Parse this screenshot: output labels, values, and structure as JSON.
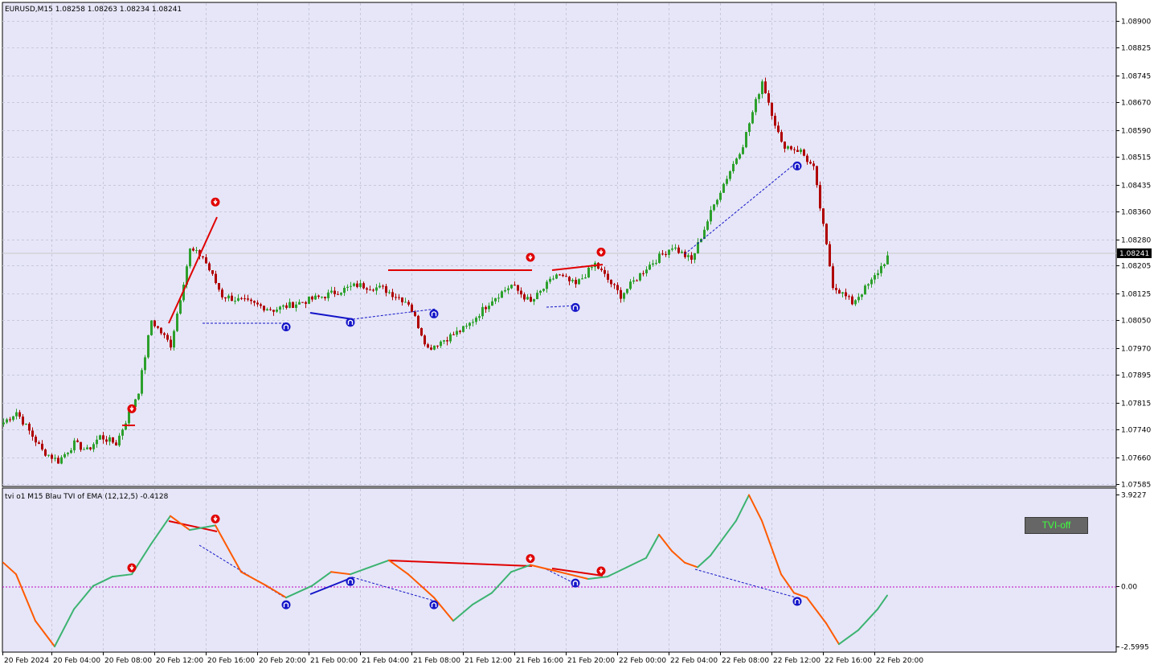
{
  "main_panel": {
    "info": "EURUSD,M15  1.08258 1.08263 1.08234 1.08241",
    "price_ticks": [
      "1.08900",
      "1.08825",
      "1.08745",
      "1.08670",
      "1.08590",
      "1.08515",
      "1.08435",
      "1.08360",
      "1.08280",
      "1.08205",
      "1.08125",
      "1.08050",
      "1.07970",
      "1.07895",
      "1.07815",
      "1.07740",
      "1.07660",
      "1.07585"
    ],
    "current_price": "1.08241"
  },
  "indicator_panel": {
    "info": "tvi o1 M15 Blau TVI of EMA (12,12,5) -0.4128",
    "ticks": [
      "3.9227",
      "0.00",
      "-2.5995"
    ]
  },
  "time_labels": [
    "20 Feb 2024",
    "20 Feb 04:00",
    "20 Feb 08:00",
    "20 Feb 12:00",
    "20 Feb 16:00",
    "20 Feb 20:00",
    "21 Feb 00:00",
    "21 Feb 04:00",
    "21 Feb 08:00",
    "21 Feb 12:00",
    "21 Feb 16:00",
    "21 Feb 20:00",
    "22 Feb 00:00",
    "22 Feb 04:00",
    "22 Feb 08:00",
    "22 Feb 12:00",
    "22 Feb 16:00",
    "22 Feb 20:00"
  ],
  "button": {
    "label": "TVI-off"
  },
  "colors": {
    "background": "#e6e6f8",
    "bull": "#2ca02c",
    "bear": "#b00000",
    "bear_arrow": "#e00000",
    "bull_arrow": "#1414c8",
    "tvi_up": "#3cb371",
    "tvi_down": "#ff5a00"
  },
  "chart_data": {
    "type": "candlestick",
    "symbol": "EURUSD",
    "timeframe": "M15",
    "y_range": [
      1.07585,
      1.089
    ],
    "price_path": [
      [
        0,
        1.0776
      ],
      [
        4,
        1.0779
      ],
      [
        12,
        1.0768
      ],
      [
        17,
        1.0765
      ],
      [
        22,
        1.077
      ],
      [
        26,
        1.0768
      ],
      [
        30,
        1.0772
      ],
      [
        35,
        1.077
      ],
      [
        42,
        1.0785
      ],
      [
        46,
        1.0805
      ],
      [
        52,
        1.0798
      ],
      [
        58,
        1.0825
      ],
      [
        62,
        1.0823
      ],
      [
        68,
        1.0812
      ],
      [
        76,
        1.081
      ],
      [
        84,
        1.0808
      ],
      [
        92,
        1.081
      ],
      [
        100,
        1.0812
      ],
      [
        110,
        1.0815
      ],
      [
        118,
        1.0814
      ],
      [
        126,
        1.081
      ],
      [
        132,
        1.0797
      ],
      [
        138,
        1.08
      ],
      [
        144,
        1.0803
      ],
      [
        152,
        1.0811
      ],
      [
        158,
        1.0815
      ],
      [
        164,
        1.081
      ],
      [
        172,
        1.0818
      ],
      [
        178,
        1.0815
      ],
      [
        184,
        1.0821
      ],
      [
        192,
        1.0812
      ],
      [
        200,
        1.082
      ],
      [
        208,
        1.0826
      ],
      [
        214,
        1.0822
      ],
      [
        222,
        1.084
      ],
      [
        230,
        1.0855
      ],
      [
        236,
        1.0873
      ],
      [
        242,
        1.0855
      ],
      [
        248,
        1.0853
      ],
      [
        252,
        1.0848
      ],
      [
        258,
        1.0815
      ],
      [
        264,
        1.081
      ],
      [
        270,
        1.0816
      ],
      [
        275,
        1.0823
      ]
    ],
    "bearish_signals": [
      [
        40,
        1.07785
      ],
      [
        66,
        1.08372
      ],
      [
        164,
        1.08215
      ],
      [
        186,
        1.0823
      ]
    ],
    "bullish_signals": [
      [
        88,
        1.08045
      ],
      [
        108,
        1.08058
      ],
      [
        134,
        1.08082
      ],
      [
        178,
        1.081
      ],
      [
        247,
        1.08502
      ]
    ],
    "tvi": {
      "y_range": [
        -2.5995,
        3.9227
      ],
      "path": [
        [
          0,
          1.0
        ],
        [
          4,
          0.5
        ],
        [
          10,
          -1.5
        ],
        [
          16,
          -2.6
        ],
        [
          22,
          -1.0
        ],
        [
          28,
          0
        ],
        [
          34,
          0.4
        ],
        [
          40,
          0.5
        ],
        [
          46,
          1.8
        ],
        [
          52,
          3.0
        ],
        [
          58,
          2.4
        ],
        [
          66,
          2.6
        ],
        [
          74,
          0.6
        ],
        [
          82,
          0
        ],
        [
          88,
          -0.5
        ],
        [
          96,
          0
        ],
        [
          102,
          0.6
        ],
        [
          108,
          0.5
        ],
        [
          114,
          0.8
        ],
        [
          120,
          1.1
        ],
        [
          126,
          0.5
        ],
        [
          134,
          -0.5
        ],
        [
          140,
          -1.5
        ],
        [
          146,
          -0.8
        ],
        [
          152,
          -0.3
        ],
        [
          158,
          0.6
        ],
        [
          164,
          0.9
        ],
        [
          170,
          0.7
        ],
        [
          176,
          0.5
        ],
        [
          182,
          0.3
        ],
        [
          188,
          0.4
        ],
        [
          194,
          0.8
        ],
        [
          200,
          1.2
        ],
        [
          204,
          2.2
        ],
        [
          208,
          1.5
        ],
        [
          212,
          1.0
        ],
        [
          216,
          0.8
        ],
        [
          220,
          1.3
        ],
        [
          228,
          2.8
        ],
        [
          232,
          3.9
        ],
        [
          236,
          2.8
        ],
        [
          242,
          0.5
        ],
        [
          246,
          -0.3
        ],
        [
          250,
          -0.5
        ],
        [
          256,
          -1.6
        ],
        [
          260,
          -2.5
        ],
        [
          266,
          -1.9
        ],
        [
          272,
          -1.0
        ],
        [
          275,
          -0.41
        ]
      ]
    }
  }
}
